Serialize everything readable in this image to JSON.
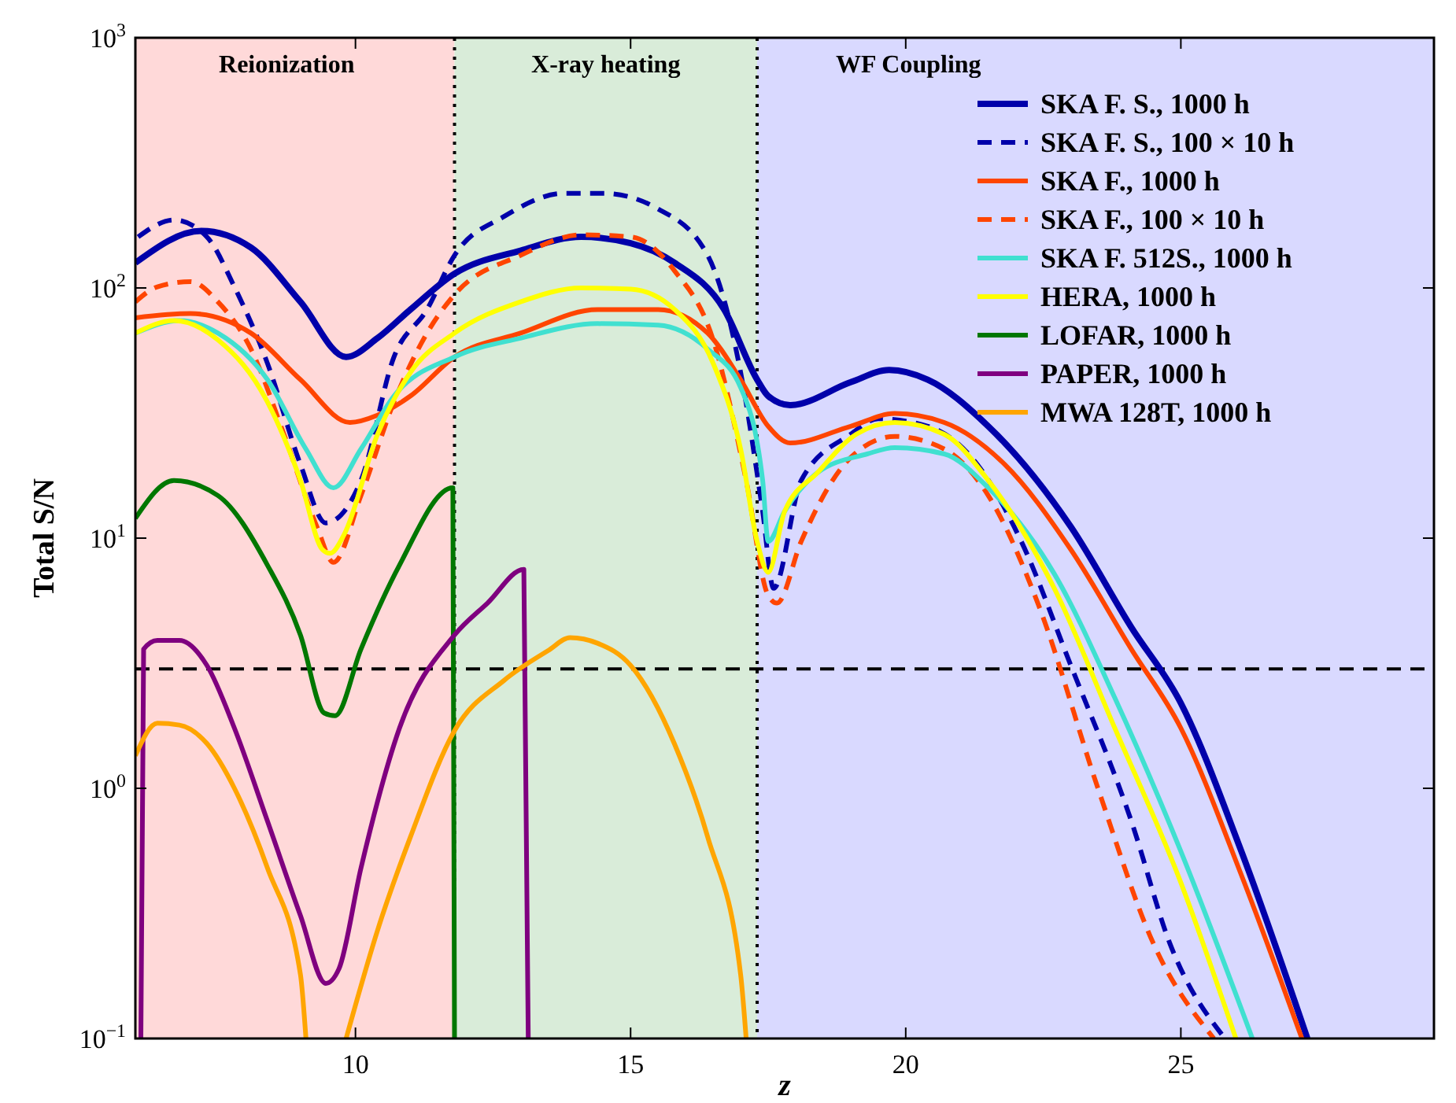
{
  "chart_data": {
    "type": "line",
    "xlabel": "z",
    "ylabel": "Total S/N",
    "log": "y",
    "xlim": [
      6,
      29.6
    ],
    "ylim": [
      0.1,
      1000
    ],
    "xticks": [
      10,
      15,
      20,
      25
    ],
    "yticks": [
      {
        "value": 0.1,
        "label": "10$^{−1}$"
      },
      {
        "value": 1,
        "label": "10$^{0}$"
      },
      {
        "value": 10,
        "label": "10$^{1}$"
      },
      {
        "value": 100,
        "label": "10$^{2}$"
      },
      {
        "value": 1000,
        "label": "10$^{3}$"
      }
    ],
    "grid": false,
    "legend": "top right",
    "bands": [
      {
        "axis": "x",
        "from": 6,
        "to": 11.8,
        "label": "Reionization",
        "color": "#ffd9d9"
      },
      {
        "axis": "x",
        "from": 11.8,
        "to": 17.3,
        "label": "X-ray heating",
        "color": "#d9ecd9"
      },
      {
        "axis": "x",
        "from": 17.3,
        "to": 29.6,
        "label": "WF Coupling",
        "color": "#d9d9ff"
      }
    ],
    "ref_lines": [
      {
        "axis": "y",
        "value": 3,
        "label": null,
        "color": "#000000",
        "line_style": "dashed"
      },
      {
        "axis": "x",
        "value": 11.8,
        "label": null,
        "color": "#000000",
        "line_style": "dotted"
      },
      {
        "axis": "x",
        "value": 17.3,
        "label": null,
        "color": "#000000",
        "line_style": "dotted"
      }
    ],
    "series": [
      {
        "name": "SKA F. S., 1000 h",
        "color": "#0000aa",
        "line_style": "solid",
        "x": [
          6,
          7.2,
          8.1,
          9,
          9.83,
          10.4,
          11,
          11.8,
          13,
          14.1,
          15,
          15.8,
          16.7,
          17.3,
          17.5,
          17.9,
          19,
          19.7,
          20.4,
          21.5,
          23,
          24.1,
          25,
          26.1,
          27.3
        ],
        "values": [
          126,
          169,
          145,
          88,
          53,
          63,
          82,
          114,
          141,
          160,
          151,
          126,
          82,
          43,
          37,
          34,
          42,
          47,
          43,
          28,
          11.1,
          4.4,
          2.19,
          0.56,
          0.1
        ]
      },
      {
        "name": "SKA F. S., 100 × 10 h",
        "color": "#0000aa",
        "line_style": "dashed",
        "x": [
          6.05,
          6.7,
          7.3,
          7.8,
          8.4,
          9,
          9.46,
          10.1,
          10.7,
          11.3,
          11.8,
          12.7,
          13.8,
          14.5,
          15.5,
          16.4,
          17,
          17.4,
          17.6,
          18.1,
          19,
          19.5,
          20.4,
          21.3,
          22.1,
          23,
          24.1,
          24.8,
          25.8
        ],
        "values": [
          160,
          187,
          160,
          101,
          50,
          19.7,
          11.5,
          17,
          53,
          82,
          135,
          193,
          239,
          239,
          207,
          135,
          46,
          12.8,
          6.3,
          17,
          26,
          30,
          28,
          19.7,
          9.7,
          3.1,
          0.74,
          0.24,
          0.1
        ]
      },
      {
        "name": "SKA F., 1000 h",
        "color": "#ff4500",
        "line_style": "solid",
        "x": [
          6,
          7,
          8.1,
          9,
          9.9,
          10.4,
          11,
          11.8,
          13,
          14.4,
          15.5,
          16.4,
          17,
          17.5,
          17.9,
          19,
          19.8,
          20.7,
          21.8,
          23,
          24.1,
          25,
          26.1,
          27.2
        ],
        "values": [
          76,
          79,
          66,
          43,
          29,
          31,
          37,
          53,
          66,
          82,
          82,
          66,
          43,
          28,
          24,
          28,
          31.5,
          29,
          19.7,
          9,
          3.6,
          1.74,
          0.45,
          0.1
        ]
      },
      {
        "name": "SKA F., 100 × 10 h",
        "color": "#ff4500",
        "line_style": "dashed",
        "x": [
          6,
          6.4,
          7,
          7.5,
          8.1,
          8.7,
          9.3,
          9.6,
          10.1,
          10.7,
          11.3,
          11.8,
          13,
          14.1,
          15,
          15.8,
          16.5,
          17.1,
          17.5,
          17.66,
          18.1,
          19,
          19.8,
          20.7,
          21.5,
          22.4,
          23.5,
          24.5,
          25.6
        ],
        "values": [
          88,
          101,
          106,
          88,
          57,
          26,
          11.1,
          8,
          14.8,
          35,
          66,
          94,
          135,
          163,
          160,
          117,
          62,
          17,
          5.9,
          5.5,
          9.7,
          21,
          25.5,
          22.7,
          14.8,
          5.5,
          0.99,
          0.24,
          0.1
        ]
      },
      {
        "name": "SKA F. 512S., 1000 h",
        "color": "#40e0d0",
        "line_style": "solid",
        "x": [
          6,
          6.8,
          7.5,
          8.4,
          9.1,
          9.6,
          10.1,
          10.7,
          11.8,
          13,
          14.4,
          15.5,
          16.4,
          17,
          17.4,
          17.5,
          17.8,
          18.4,
          19.3,
          19.8,
          20.7,
          21.5,
          22.7,
          23.8,
          25,
          26.3
        ],
        "values": [
          66,
          74,
          66,
          43,
          22.7,
          15.9,
          22.7,
          37,
          53,
          63,
          72,
          71,
          57,
          40,
          17,
          9.7,
          12.8,
          18.3,
          21.7,
          23,
          21.7,
          15.9,
          7.2,
          2.3,
          0.56,
          0.1
        ]
      },
      {
        "name": "HERA, 1000 h",
        "color": "#ffff00",
        "line_style": "solid",
        "x": [
          6,
          6.7,
          7.5,
          8.4,
          9,
          9.4,
          9.54,
          9.8,
          10.4,
          11,
          11.8,
          13,
          14.1,
          15,
          15.8,
          16.5,
          17,
          17.3,
          17.5,
          17.8,
          18.4,
          19.1,
          19.8,
          20.7,
          21.5,
          22.7,
          23.8,
          25,
          26
        ],
        "values": [
          66,
          74,
          62,
          35,
          17,
          9,
          8.7,
          10.4,
          26,
          46,
          66,
          88,
          100,
          99,
          82,
          50,
          22.7,
          9.7,
          7.3,
          12.8,
          18.3,
          26,
          29,
          26,
          17,
          6.3,
          1.74,
          0.42,
          0.1
        ]
      },
      {
        "name": "LOFAR, 1000 h",
        "color": "#007700",
        "line_style": "solid",
        "x": [
          6,
          6.7,
          7.5,
          8.4,
          9,
          9.43,
          9.63,
          10.1,
          10.8,
          11.77,
          11.8
        ],
        "values": [
          12,
          17,
          14.8,
          7.8,
          4.1,
          2,
          1.95,
          3.6,
          7.8,
          15.9,
          0.1
        ]
      },
      {
        "name": "PAPER, 1000 h",
        "color": "#7f007f",
        "line_style": "solid",
        "x": [
          6.1,
          6.15,
          6.4,
          6.8,
          7.3,
          7.8,
          8.4,
          9,
          9.46,
          9.7,
          10.1,
          10.8,
          11.8,
          12.4,
          13.06,
          13.14
        ],
        "values": [
          0.1,
          3.6,
          3.9,
          3.9,
          3.1,
          1.74,
          0.74,
          0.31,
          0.166,
          0.19,
          0.48,
          1.74,
          4.1,
          5.5,
          7.5,
          0.1
        ]
      },
      {
        "name": "MWA 128T, 1000 h",
        "color": "#ffa500",
        "line_style": "solid",
        "x": [
          6,
          6.4,
          6.8,
          7.3,
          7.8,
          8.4,
          9,
          9.1,
          9.5,
          9.83,
          10.4,
          11,
          11.8,
          12.7,
          13.5,
          13.9,
          14.4,
          15,
          15.8,
          16.4,
          17,
          17.1
        ],
        "values": [
          1.35,
          1.82,
          1.79,
          1.51,
          1,
          0.48,
          0.18,
          0.1,
          null,
          0.1,
          0.27,
          0.64,
          1.7,
          2.7,
          3.55,
          4,
          3.8,
          3.1,
          1.5,
          0.64,
          0.18,
          0.1
        ]
      }
    ]
  }
}
